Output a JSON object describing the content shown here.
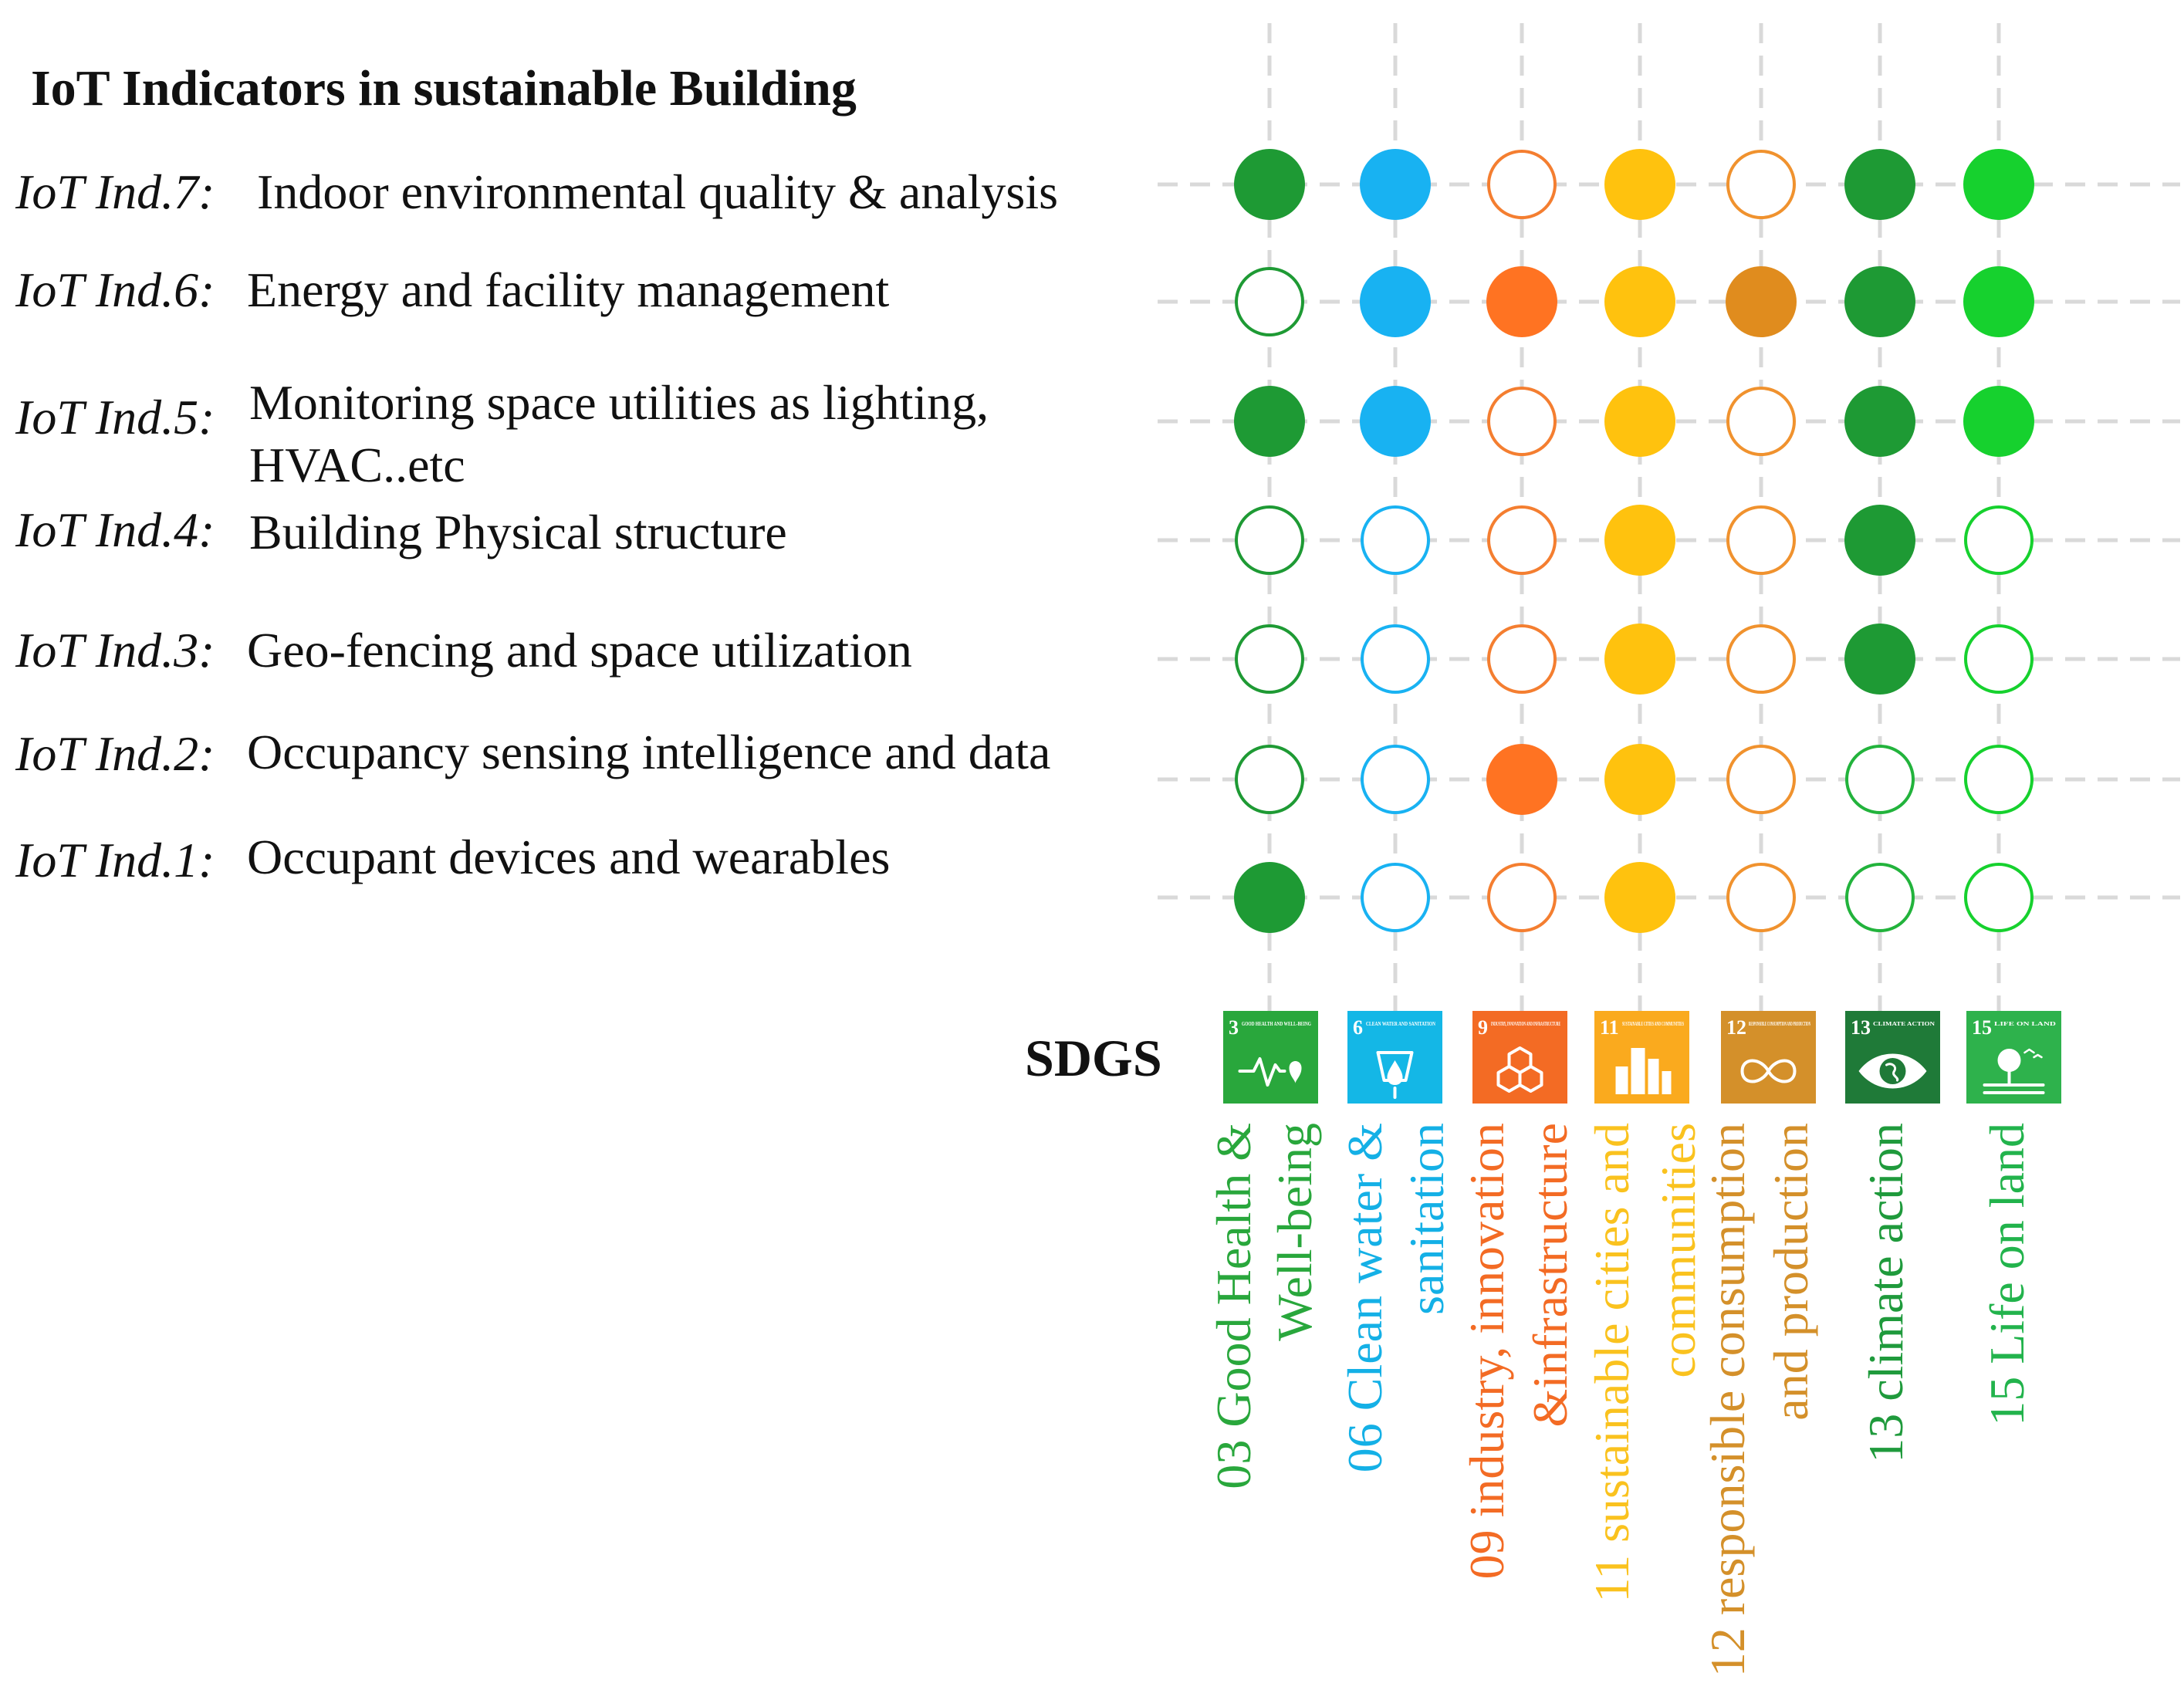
{
  "title": "IoT Indicators in sustainable Building",
  "sdgs_label": "SDGS",
  "indicators": [
    {
      "code": "IoT Ind.7:",
      "lines": [
        "Indoor environmental quality & analysis"
      ]
    },
    {
      "code": "IoT Ind.6:",
      "lines": [
        "Energy and facility management"
      ]
    },
    {
      "code": "IoT Ind.5:",
      "lines": [
        "Monitoring space utilities as lighting,",
        "HVAC..etc"
      ]
    },
    {
      "code": "IoT Ind.4:",
      "lines": [
        "Building Physical structure"
      ]
    },
    {
      "code": "IoT Ind.3:",
      "lines": [
        "Geo-fencing and space utilization"
      ]
    },
    {
      "code": "IoT Ind.2:",
      "lines": [
        "Occupancy sensing intelligence and data"
      ]
    },
    {
      "code": "IoT Ind.1:",
      "lines": [
        "Occupant devices and wearables"
      ]
    }
  ],
  "goals": [
    {
      "number": "3",
      "tile_title": "GOOD HEALTH AND WELL-BEING",
      "icon": "heartbeat-icon",
      "color": "#29A73C",
      "label_lines": [
        "03 Good Health &",
        "Well-being"
      ]
    },
    {
      "number": "6",
      "tile_title": "CLEAN WATER AND SANITATION",
      "icon": "water-drop-icon",
      "color": "#14B7E6",
      "label_lines": [
        "06 Clean water &",
        "sanitation"
      ]
    },
    {
      "number": "9",
      "tile_title": "INDUSTRY, INNOVATION AND INFRASTRUCTURE",
      "icon": "cubes-icon",
      "color": "#F36B24",
      "label_lines": [
        "09 industry, innovation",
        "&infrastructure"
      ]
    },
    {
      "number": "11",
      "tile_title": "SUSTAINABLE CITIES AND COMMUNITIES",
      "icon": "city-icon",
      "color": "#FAAA1E",
      "label_lines": [
        "11 sustainable cities and",
        "communities"
      ]
    },
    {
      "number": "12",
      "tile_title": "RESPONSIBLE CONSUMPTION AND PRODUCTION",
      "icon": "infinity-icon",
      "color": "#D4902A",
      "label_lines": [
        "12 responsible consumption",
        "and production"
      ]
    },
    {
      "number": "13",
      "tile_title": "CLIMATE ACTION",
      "icon": "eye-globe-icon",
      "color": "#1F7A38",
      "label_lines": [
        "13 climate action"
      ]
    },
    {
      "number": "15",
      "tile_title": "LIFE ON LAND",
      "icon": "tree-icon",
      "color": "#2EB24C",
      "label_lines": [
        "15 Life on land"
      ]
    }
  ],
  "matrix_colors": [
    "#1E9A34",
    "#18B2F2",
    "#FF7322",
    "#FFC20E",
    "#E08C1E",
    "#1E9A34",
    "#16D12E"
  ],
  "stroke_colors": [
    "#1E9A34",
    "#18B2F2",
    "#F47E30",
    "#FFC20E",
    "#F0922E",
    "#22B33C",
    "#16D12E"
  ],
  "label_colors": [
    "#29A73C",
    "#14B0E6",
    "#F36B24",
    "#FAC21E",
    "#D4902A",
    "#1F9A3C",
    "#22B34C"
  ],
  "matrix": [
    [
      1,
      1,
      0,
      1,
      0,
      1,
      1
    ],
    [
      0,
      1,
      1,
      1,
      1,
      1,
      1
    ],
    [
      1,
      1,
      0,
      1,
      0,
      1,
      1
    ],
    [
      0,
      0,
      0,
      1,
      0,
      1,
      0
    ],
    [
      0,
      0,
      0,
      1,
      0,
      1,
      0
    ],
    [
      0,
      0,
      1,
      1,
      0,
      0,
      0
    ],
    [
      1,
      0,
      0,
      1,
      0,
      0,
      0
    ]
  ]
}
